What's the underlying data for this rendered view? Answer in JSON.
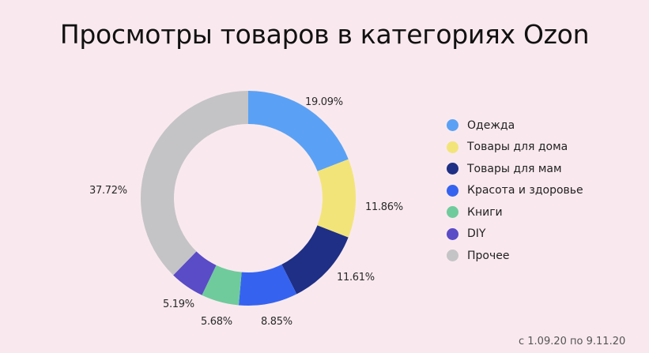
{
  "title": "Просмотры товаров в категориях Ozon",
  "footnote": "с 1.09.20 по 9.11.20",
  "background": "#f9e9ee",
  "legend": [
    {
      "label": "Одежда",
      "color": "#5aa1f5"
    },
    {
      "label": "Товары для дома",
      "color": "#f3e47a"
    },
    {
      "label": "Товары для мам",
      "color": "#1e2f85"
    },
    {
      "label": "Красота и здоровье",
      "color": "#3563f0"
    },
    {
      "label": "Книги",
      "color": "#6fcb9c"
    },
    {
      "label": "DIY",
      "color": "#5a4bc7"
    },
    {
      "label": "Прочее",
      "color": "#c4c4c6"
    }
  ],
  "labels": [
    "19.09%",
    "11.86%",
    "11.61%",
    "8.85%",
    "5.68%",
    "5.19%",
    "37.72%"
  ],
  "chart_data": {
    "type": "pie",
    "variant": "donut",
    "title": "Просмотры товаров в категориях Ozon",
    "subtitle": "с 1.09.20 по 9.11.20",
    "categories": [
      "Одежда",
      "Товары для дома",
      "Товары для мам",
      "Красота и здоровье",
      "Книги",
      "DIY",
      "Прочее"
    ],
    "values": [
      19.09,
      11.86,
      11.61,
      8.85,
      5.68,
      5.19,
      37.72
    ],
    "colors": [
      "#5aa1f5",
      "#f3e47a",
      "#1e2f85",
      "#3563f0",
      "#6fcb9c",
      "#5a4bc7",
      "#c4c4c6"
    ],
    "unit": "%",
    "legend_position": "right",
    "start_angle": "12 o'clock, clockwise"
  }
}
